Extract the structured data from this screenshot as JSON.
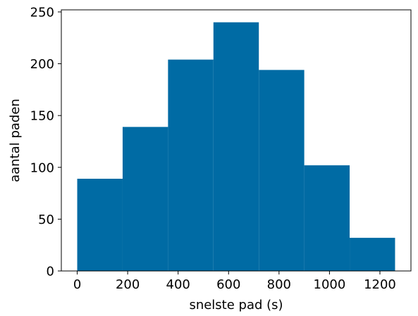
{
  "chart_data": {
    "type": "bar",
    "title": "",
    "xlabel": "snelste pad (s)",
    "ylabel": "aantal paden",
    "bin_edges": [
      0,
      180,
      360,
      540,
      720,
      900,
      1080,
      1260
    ],
    "values": [
      89,
      139,
      204,
      240,
      194,
      102,
      32
    ],
    "xlim": [
      -63,
      1323
    ],
    "ylim": [
      0,
      252
    ],
    "xticks": [
      0,
      200,
      400,
      600,
      800,
      1000,
      1200
    ],
    "yticks": [
      0,
      50,
      100,
      150,
      200,
      250
    ],
    "bar_color": "#006BA4",
    "grid": false
  }
}
